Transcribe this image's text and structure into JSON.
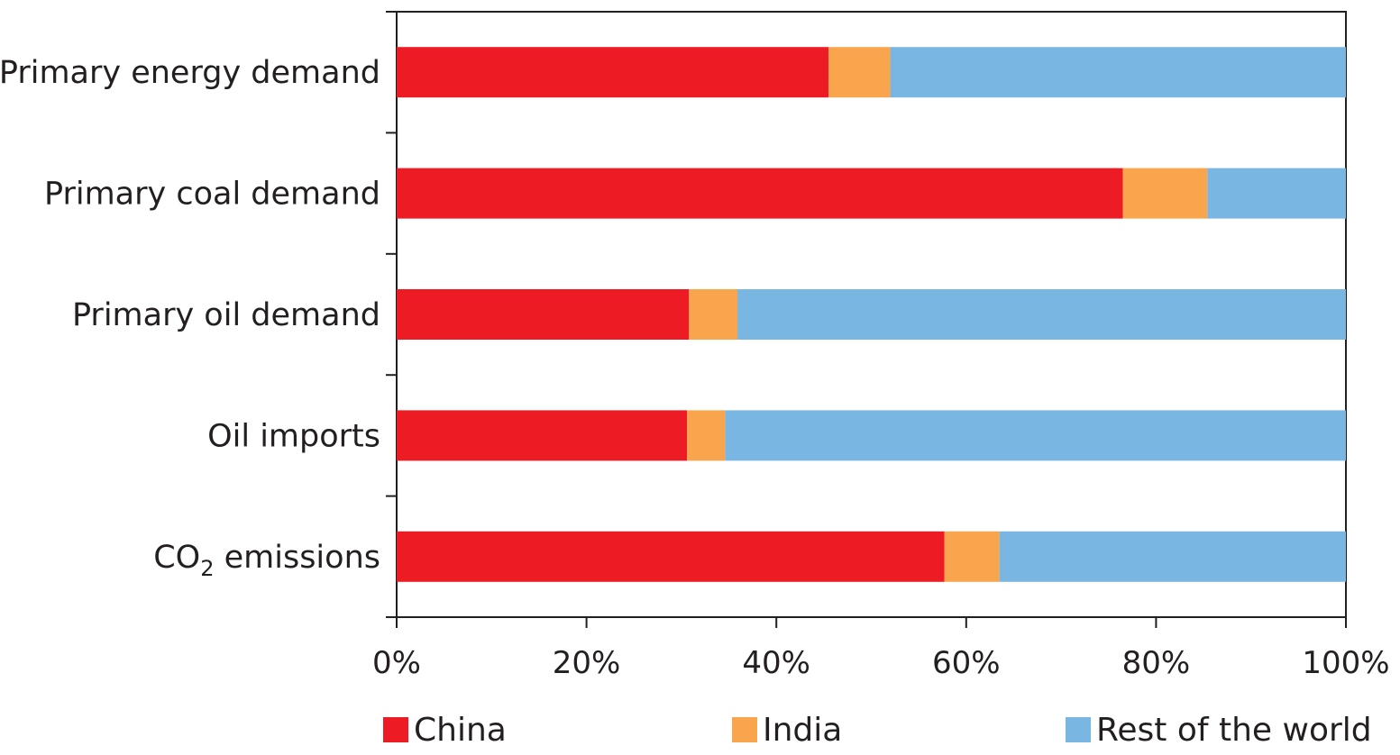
{
  "chart_data": {
    "type": "bar",
    "orientation": "horizontal",
    "stacked": true,
    "categories": [
      "Primary energy demand",
      "Primary coal demand",
      "Primary oil demand",
      "Oil imports",
      "CO2 emissions"
    ],
    "category_labels": [
      {
        "text": "Primary energy demand",
        "subscript": ""
      },
      {
        "text": "Primary coal demand",
        "subscript": ""
      },
      {
        "text": "Primary oil demand",
        "subscript": ""
      },
      {
        "text": "Oil imports",
        "subscript": ""
      },
      {
        "text": "CO",
        "subscript": "2",
        "suffix": " emissions"
      }
    ],
    "series": [
      {
        "name": "China",
        "color": "#ed1c24",
        "values": [
          45.5,
          76.5,
          30.8,
          30.6,
          57.7
        ]
      },
      {
        "name": "India",
        "color": "#f9a54d",
        "values": [
          6.5,
          8.9,
          5.1,
          4.0,
          5.8
        ]
      },
      {
        "name": "Rest of the world",
        "color": "#7ab6e2",
        "values": [
          48.0,
          14.6,
          64.1,
          65.4,
          36.5
        ]
      }
    ],
    "xlim": [
      0,
      100
    ],
    "xticks": [
      0,
      20,
      40,
      60,
      80,
      100
    ],
    "xtick_labels": [
      "0%",
      "20%",
      "40%",
      "60%",
      "80%",
      "100%"
    ],
    "title": "",
    "xlabel": "",
    "ylabel": "",
    "grid": false,
    "legend_position": "bottom"
  }
}
